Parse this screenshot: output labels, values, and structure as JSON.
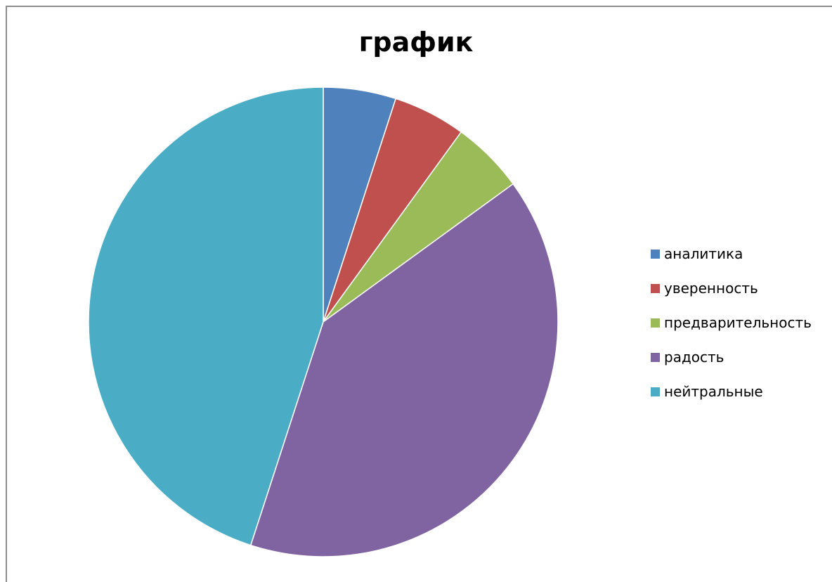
{
  "chart_data": {
    "type": "pie",
    "title": "график",
    "legend_position": "right",
    "categories": [
      "аналитика",
      "уверенность",
      "предварительность",
      "радость",
      "нейтральные"
    ],
    "values": [
      5,
      5,
      5,
      40,
      45
    ],
    "colors": [
      "#4f81bd",
      "#c0504d",
      "#9bbb59",
      "#8064a2",
      "#4bacc6"
    ]
  }
}
